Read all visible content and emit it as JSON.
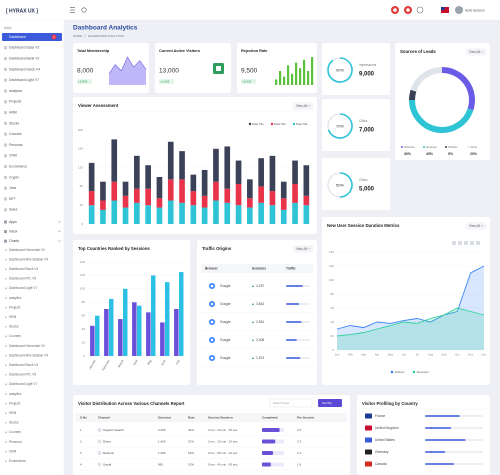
{
  "header": {
    "logo": "[ HYRAX UX ]",
    "user": "Hello Session"
  },
  "sidebar": {
    "section": "Dash",
    "badge": "2",
    "items": [
      "Dashboard",
      "Dashboard Saas V2",
      "Dashboard Bank V2",
      "Dashboard Stock V4",
      "Dashboard Light V7",
      "analytics",
      "Projects",
      "HRM",
      "Stocks",
      "Courses",
      "Personal",
      "CRM",
      "Ecommerce",
      "Crypto",
      "Jobs",
      "NFT",
      "Sales"
    ],
    "groups": [
      "Apps",
      "Inbox",
      "Charts"
    ],
    "subitems": [
      "Dashboard Horizontal V3",
      "Dashboard Mini Sidebar V4",
      "Dashboard Stock V4",
      "Dashboard RTL V5",
      "Dashboard Light V7",
      "analytics",
      "Projects",
      "HRM",
      "Stocks",
      "Courses",
      "Dashboard Horizontal V3",
      "Dashboard Mini Sidebar V4",
      "Dashboard Stock V4",
      "Dashboard RTL V5",
      "Dashboard Light V7",
      "analytics",
      "Projects",
      "HRM",
      "Stocks",
      "Courses",
      "Personal",
      "CRM",
      "Ecommerce"
    ]
  },
  "page": {
    "title": "Dashboard Analytics",
    "breadcrumb": [
      "HOME",
      "DASHBOARD ANALYTICS"
    ]
  },
  "stats": [
    {
      "title": "Total Membership",
      "value": "8,000",
      "change": "+5,945",
      "spark": [
        22,
        40,
        28,
        55,
        35,
        48,
        30
      ]
    },
    {
      "title": "Current Active Visitors",
      "value": "13,000",
      "change": "+1,945"
    },
    {
      "title": "Rejection Rate",
      "value": "9,500",
      "change": "+8,935",
      "spark": [
        10,
        25,
        15,
        35,
        20,
        40,
        30,
        45,
        25,
        50
      ]
    }
  ],
  "rings": [
    {
      "percent": {
        "value": 90,
        "label": "90%"
      },
      "label": "Impressions",
      "value": "9,000"
    },
    {
      "percent": {
        "value": 70,
        "label": "70%"
      },
      "label": "Clicks",
      "value": "7,000"
    },
    {
      "percent": {
        "value": 50,
        "label": "50%"
      },
      "label": "Clicks",
      "value": "5,000"
    }
  ],
  "leads": {
    "title": "Sources of Leads",
    "menu": "View All",
    "segments": [
      {
        "name": "Website",
        "value": 30,
        "label": "30%",
        "color": "#6b5ce7"
      },
      {
        "name": "Desktop",
        "value": 45,
        "label": "45%",
        "color": "#2ec4d6"
      },
      {
        "name": "Tablets",
        "value": 5,
        "label": "5%",
        "color": "#3b4257"
      },
      {
        "name": "Other",
        "value": 20,
        "label": "20%",
        "color": "#dfe3ea"
      }
    ]
  },
  "viewer": {
    "title": "Viewer Assessment",
    "menu": "View All",
    "ylim": [
      0,
      200
    ],
    "yticks": [
      0,
      40,
      80,
      120,
      160,
      200
    ],
    "series": [
      {
        "name": "Data Title",
        "color": "#3b4257",
        "values": [
          60,
          40,
          90,
          30,
          70,
          50,
          45,
          80,
          60,
          35,
          55,
          70,
          90,
          50,
          40,
          60,
          75,
          35,
          50,
          65
        ]
      },
      {
        "name": "Data Title",
        "color": "#e8334a",
        "values": [
          30,
          20,
          40,
          25,
          30,
          35,
          20,
          45,
          50,
          30,
          25,
          40,
          30,
          45,
          20,
          35,
          30,
          25,
          40,
          20
        ]
      },
      {
        "name": "Data Title",
        "color": "#2ec4d6",
        "values": [
          40,
          30,
          50,
          35,
          45,
          40,
          35,
          50,
          45,
          40,
          35,
          50,
          45,
          40,
          35,
          45,
          40,
          30,
          45,
          40
        ]
      }
    ]
  },
  "countries": {
    "title": "Top Countries Ranked by Sessions",
    "categories": [
      "January",
      "February",
      "March",
      "April",
      "May",
      "June",
      "July"
    ],
    "ylim": [
      0,
      140
    ],
    "yticks": [
      0,
      20,
      40,
      60,
      80,
      100,
      120,
      140
    ],
    "series": [
      {
        "color": "#6a4fd8",
        "values": [
          45,
          70,
          55,
          80,
          65,
          50,
          70
        ]
      },
      {
        "color": "#2bc0e4",
        "values": [
          60,
          85,
          100,
          75,
          120,
          110,
          125
        ]
      }
    ]
  },
  "traffic": {
    "title": "Traffic Origins",
    "menu": "View All",
    "columns": [
      "Browser",
      "Sessions",
      "Traffic"
    ],
    "rows": [
      {
        "browser": "Google",
        "sessions": "4,257",
        "traffic": 70
      },
      {
        "browser": "Google",
        "sessions": "3,842",
        "traffic": 55
      },
      {
        "browser": "Google",
        "sessions": "2,961",
        "traffic": 65
      },
      {
        "browser": "Google",
        "sessions": "2,406",
        "traffic": 45
      },
      {
        "browser": "Google",
        "sessions": "1,874",
        "traffic": 60
      }
    ]
  },
  "session": {
    "title": "New User Session Duration Metrics",
    "menu": "View All",
    "categories": [
      "Jan",
      "Feb",
      "Mar",
      "Apr",
      "May",
      "Jun",
      "Jul",
      "Aug",
      "Sep",
      "Oct",
      "Nov",
      "Dec"
    ],
    "ylim": [
      0,
      140
    ],
    "yticks": [
      0,
      20,
      40,
      60,
      80,
      100,
      120,
      140
    ],
    "series": [
      {
        "name": "Visitors",
        "color": "#3a86f7",
        "values": [
          30,
          35,
          32,
          40,
          38,
          42,
          45,
          40,
          50,
          55,
          110,
          120
        ]
      },
      {
        "name": "Sessions",
        "color": "#2fd39a",
        "values": [
          20,
          22,
          25,
          30,
          35,
          40,
          38,
          45,
          50,
          60,
          55,
          50
        ]
      }
    ]
  },
  "channels": {
    "title": "Visitor Distribution Across Various Channels Report",
    "search": "Search here",
    "sort": "Sort By",
    "columns": [
      "S.No",
      "Channel",
      "Sessions",
      "Rate",
      "Session Duration",
      "Completed",
      "Per Session"
    ],
    "rows": [
      [
        "1",
        "Organic Search",
        "2,450",
        "34%",
        "1 hrs : 20 min : 45 sec",
        80,
        "2.5"
      ],
      [
        "2",
        "Direct",
        "1,465",
        "22%",
        "1 hrs : 15 min : 10 sec",
        60,
        "2.3"
      ],
      [
        "3",
        "Referral",
        "1,280",
        "18%",
        "0 hrs : 58 min : 32 sec",
        50,
        "2.1"
      ],
      [
        "4",
        "Social",
        "985",
        "15%",
        "0 hrs : 45 min : 05 sec",
        40,
        "1.8"
      ]
    ]
  },
  "profiling": {
    "title": "Visitor Profiling by Country",
    "rows": [
      {
        "country": "France",
        "value": 60
      },
      {
        "country": "United Kingdom",
        "value": 45
      },
      {
        "country": "United States",
        "value": 70
      },
      {
        "country": "Germany",
        "value": 35
      },
      {
        "country": "Canada",
        "value": 50
      }
    ]
  }
}
